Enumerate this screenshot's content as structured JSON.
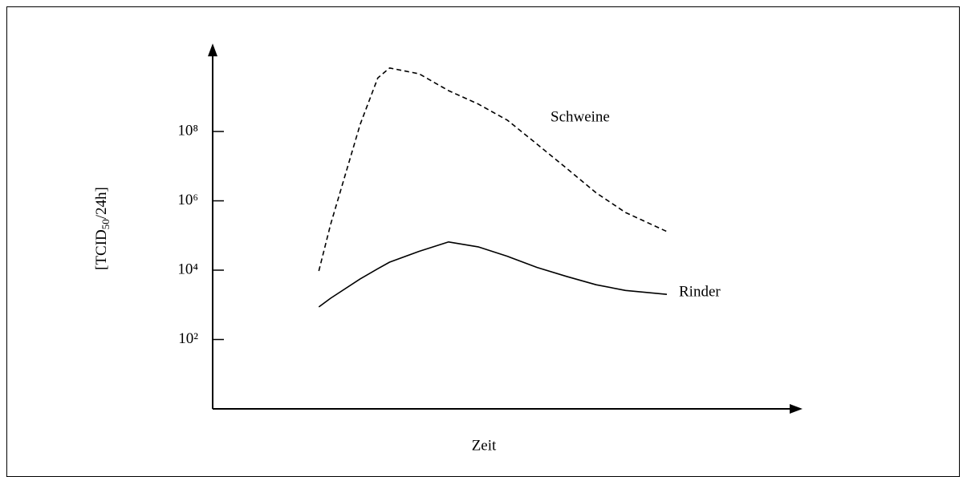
{
  "chart_data": {
    "type": "line",
    "x_label": "Zeit",
    "y_label": {
      "prefix": "[TCID",
      "subscript": "50",
      "suffix": "/24h]"
    },
    "yscale": "log",
    "xlim": [
      0,
      100
    ],
    "ylim": [
      1,
      25000000000
    ],
    "yticks": [
      {
        "value": 100,
        "label": "10²"
      },
      {
        "value": 10000,
        "label": "10⁴"
      },
      {
        "value": 1000000,
        "label": "10⁶"
      },
      {
        "value": 100000000,
        "label": "10⁸"
      }
    ],
    "x": [
      18,
      20,
      25,
      28,
      30,
      35,
      40,
      45,
      50,
      55,
      60,
      65,
      70,
      77
    ],
    "series": [
      {
        "name": "Schweine",
        "color": "#000000",
        "line_style": "dashed",
        "values": [
          9500,
          210000,
          160000000,
          3500000000,
          6800000000,
          4600000000,
          1500000000,
          620000000,
          210000000,
          43000000,
          8700000,
          1700000,
          460000,
          130000
        ]
      },
      {
        "name": "Rinder",
        "color": "#000000",
        "line_style": "solid",
        "values": [
          870,
          1550,
          5600,
          11000,
          17000,
          35000,
          65000,
          47000,
          25000,
          12000,
          6600,
          3800,
          2600,
          2000
        ]
      }
    ]
  }
}
